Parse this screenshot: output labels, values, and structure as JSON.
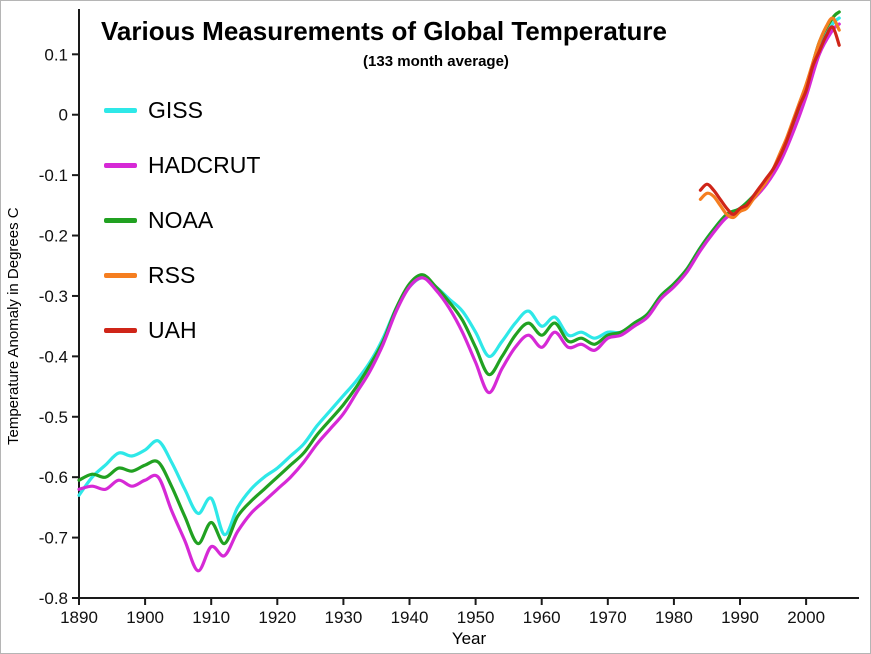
{
  "page": {
    "background": "#ffffff"
  },
  "chart_data": {
    "type": "line",
    "title": "Various Measurements of Global Temperature",
    "subtitle": "(133 month average)",
    "xlabel": "Year",
    "ylabel": "Temperature Anomaly in Degrees C",
    "xlim": [
      1890,
      2008
    ],
    "ylim": [
      -0.8,
      0.175
    ],
    "xticks": [
      1890,
      1900,
      1910,
      1920,
      1930,
      1940,
      1950,
      1960,
      1970,
      1980,
      1990,
      2000
    ],
    "yticks": [
      0.1,
      0,
      -0.1,
      -0.2,
      -0.3,
      -0.4,
      -0.5,
      -0.6,
      -0.7,
      -0.8
    ],
    "grid": false,
    "legend_position": "upper-left",
    "axis_color": "#1a1a1a",
    "line_width": 3.2,
    "series": [
      {
        "name": "GISS",
        "color": "#2ee8e8",
        "x": [
          1890,
          1892,
          1894,
          1896,
          1898,
          1900,
          1902,
          1904,
          1906,
          1908,
          1910,
          1912,
          1914,
          1916,
          1918,
          1920,
          1922,
          1924,
          1926,
          1928,
          1930,
          1932,
          1934,
          1936,
          1938,
          1940,
          1942,
          1944,
          1946,
          1948,
          1950,
          1952,
          1954,
          1956,
          1958,
          1960,
          1962,
          1964,
          1966,
          1968,
          1970,
          1972,
          1974,
          1976,
          1978,
          1980,
          1982,
          1984,
          1986,
          1988,
          1990,
          1992,
          1994,
          1996,
          1998,
          2000,
          2002,
          2004,
          2005
        ],
        "y": [
          -0.63,
          -0.6,
          -0.58,
          -0.56,
          -0.565,
          -0.555,
          -0.54,
          -0.575,
          -0.62,
          -0.66,
          -0.635,
          -0.695,
          -0.65,
          -0.62,
          -0.6,
          -0.585,
          -0.565,
          -0.545,
          -0.515,
          -0.49,
          -0.465,
          -0.44,
          -0.41,
          -0.37,
          -0.32,
          -0.285,
          -0.27,
          -0.285,
          -0.305,
          -0.325,
          -0.36,
          -0.4,
          -0.375,
          -0.345,
          -0.325,
          -0.35,
          -0.335,
          -0.365,
          -0.36,
          -0.37,
          -0.36,
          -0.36,
          -0.345,
          -0.33,
          -0.3,
          -0.28,
          -0.255,
          -0.22,
          -0.19,
          -0.165,
          -0.155,
          -0.135,
          -0.11,
          -0.075,
          -0.02,
          0.04,
          0.11,
          0.15,
          0.16
        ]
      },
      {
        "name": "NOAA",
        "color": "#21a121",
        "x": [
          1890,
          1892,
          1894,
          1896,
          1898,
          1900,
          1902,
          1904,
          1906,
          1908,
          1910,
          1912,
          1914,
          1916,
          1918,
          1920,
          1922,
          1924,
          1926,
          1928,
          1930,
          1932,
          1934,
          1936,
          1938,
          1940,
          1942,
          1944,
          1946,
          1948,
          1950,
          1952,
          1954,
          1956,
          1958,
          1960,
          1962,
          1964,
          1966,
          1968,
          1970,
          1972,
          1974,
          1976,
          1978,
          1980,
          1982,
          1984,
          1986,
          1988,
          1990,
          1992,
          1994,
          1996,
          1998,
          2000,
          2002,
          2004,
          2005
        ],
        "y": [
          -0.605,
          -0.595,
          -0.6,
          -0.585,
          -0.59,
          -0.58,
          -0.575,
          -0.615,
          -0.665,
          -0.71,
          -0.675,
          -0.71,
          -0.665,
          -0.64,
          -0.62,
          -0.6,
          -0.58,
          -0.56,
          -0.53,
          -0.505,
          -0.48,
          -0.45,
          -0.415,
          -0.375,
          -0.32,
          -0.28,
          -0.265,
          -0.285,
          -0.31,
          -0.34,
          -0.385,
          -0.43,
          -0.4,
          -0.365,
          -0.345,
          -0.365,
          -0.345,
          -0.375,
          -0.37,
          -0.38,
          -0.365,
          -0.36,
          -0.345,
          -0.33,
          -0.3,
          -0.28,
          -0.255,
          -0.22,
          -0.19,
          -0.165,
          -0.155,
          -0.135,
          -0.11,
          -0.07,
          -0.015,
          0.045,
          0.12,
          0.16,
          0.17
        ]
      },
      {
        "name": "HADCRUT",
        "color": "#d629d6",
        "x": [
          1890,
          1892,
          1894,
          1896,
          1898,
          1900,
          1902,
          1904,
          1906,
          1908,
          1910,
          1912,
          1914,
          1916,
          1918,
          1920,
          1922,
          1924,
          1926,
          1928,
          1930,
          1932,
          1934,
          1936,
          1938,
          1940,
          1942,
          1944,
          1946,
          1948,
          1950,
          1952,
          1954,
          1956,
          1958,
          1960,
          1962,
          1964,
          1966,
          1968,
          1970,
          1972,
          1974,
          1976,
          1978,
          1980,
          1982,
          1984,
          1986,
          1988,
          1990,
          1992,
          1994,
          1996,
          1998,
          2000,
          2002,
          2004,
          2005
        ],
        "y": [
          -0.62,
          -0.615,
          -0.62,
          -0.605,
          -0.615,
          -0.605,
          -0.6,
          -0.655,
          -0.705,
          -0.755,
          -0.715,
          -0.73,
          -0.69,
          -0.66,
          -0.64,
          -0.62,
          -0.6,
          -0.575,
          -0.545,
          -0.52,
          -0.495,
          -0.46,
          -0.425,
          -0.38,
          -0.325,
          -0.285,
          -0.27,
          -0.29,
          -0.32,
          -0.36,
          -0.41,
          -0.46,
          -0.42,
          -0.385,
          -0.365,
          -0.385,
          -0.36,
          -0.385,
          -0.38,
          -0.39,
          -0.37,
          -0.365,
          -0.35,
          -0.335,
          -0.305,
          -0.285,
          -0.26,
          -0.225,
          -0.195,
          -0.17,
          -0.16,
          -0.14,
          -0.115,
          -0.08,
          -0.03,
          0.03,
          0.1,
          0.14,
          0.15
        ]
      },
      {
        "name": "RSS",
        "color": "#f57e20",
        "x": [
          1984,
          1985,
          1986,
          1987,
          1988,
          1989,
          1990,
          1991,
          1992,
          1993,
          1994,
          1995,
          1996,
          1997,
          1998,
          1999,
          2000,
          2001,
          2002,
          2003,
          2004,
          2005
        ],
        "y": [
          -0.14,
          -0.13,
          -0.135,
          -0.15,
          -0.165,
          -0.17,
          -0.16,
          -0.155,
          -0.14,
          -0.125,
          -0.11,
          -0.09,
          -0.065,
          -0.04,
          -0.01,
          0.02,
          0.05,
          0.085,
          0.12,
          0.145,
          0.16,
          0.14
        ]
      },
      {
        "name": "UAH",
        "color": "#cf2518",
        "x": [
          1984,
          1985,
          1986,
          1987,
          1988,
          1989,
          1990,
          1991,
          1992,
          1993,
          1994,
          1995,
          1996,
          1997,
          1998,
          1999,
          2000,
          2001,
          2002,
          2003,
          2004,
          2005
        ],
        "y": [
          -0.125,
          -0.115,
          -0.125,
          -0.14,
          -0.155,
          -0.165,
          -0.155,
          -0.15,
          -0.135,
          -0.12,
          -0.105,
          -0.09,
          -0.07,
          -0.045,
          -0.015,
          0.015,
          0.04,
          0.08,
          0.105,
          0.13,
          0.145,
          0.115
        ]
      }
    ],
    "legend_order": [
      "GISS",
      "HADCRUT",
      "NOAA",
      "RSS",
      "UAH"
    ]
  }
}
